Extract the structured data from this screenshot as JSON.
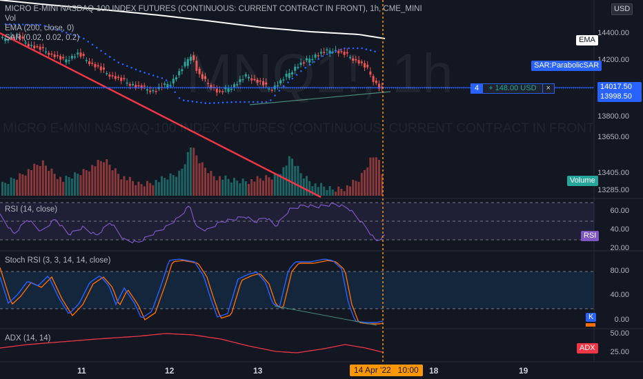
{
  "header": {
    "title": "MICRO E-MINI NASDAQ-100 INDEX FUTURES (CONTINUOUS: CURRENT CONTRACT IN FRONT), 1h, CME_MINI",
    "currency": "USD"
  },
  "indicators": {
    "vol": "Vol",
    "ema": "EMA (200, close, 0)",
    "sar": "SAR (0.02, 0.02, 0.2)",
    "rsi": "RSI (14, close)",
    "stoch": "Stoch RSI (3, 3, 14, 14, close)",
    "adx": "ADX (14, 14)"
  },
  "watermark": {
    "symbol": "MNQ1!, 1h",
    "description": "MICRO E-MINI NASDAQ-100 INDEX FUTURES (CONTINUOUS: CURRENT CONTRACT IN FRONT)"
  },
  "price_axis": {
    "labels": [
      "14400.00",
      "14200.00",
      "13800.00",
      "13650.00",
      "13405.00",
      "13285.00"
    ],
    "ema_tag": "EMA",
    "sar_tag": "SAR:ParabolicSAR",
    "volume_tag": "Volume",
    "current_price": "14017.50",
    "second_price": "13998.50"
  },
  "order_line": {
    "quantity": "4",
    "pnl": "+ 148.00 USD",
    "close_symbol": "×"
  },
  "rsi_axis": {
    "labels": [
      "60.00",
      "40.00",
      "20.00"
    ],
    "tag": "RSI"
  },
  "stoch_axis": {
    "labels": [
      "80.00",
      "40.00",
      "0.00"
    ],
    "k_tag": "K"
  },
  "adx_axis": {
    "labels": [
      "50.00",
      "25.00"
    ],
    "tag": "ADX"
  },
  "time_axis": {
    "labels": [
      "11",
      "12",
      "13",
      "18",
      "19"
    ],
    "crosshair": "14 Apr '22   10:00"
  },
  "colors": {
    "background": "#131722",
    "up": "#26a69a",
    "down": "#ef5350",
    "ema": "#ffffff",
    "sar": "#2962ff",
    "rsi": "#7e57c2",
    "stoch_k": "#2962ff",
    "stoch_d": "#ff6d00",
    "adx": "#f23645",
    "trendline": "#f23645",
    "crosshair": "#ff9800",
    "accent": "#2962ff"
  }
}
